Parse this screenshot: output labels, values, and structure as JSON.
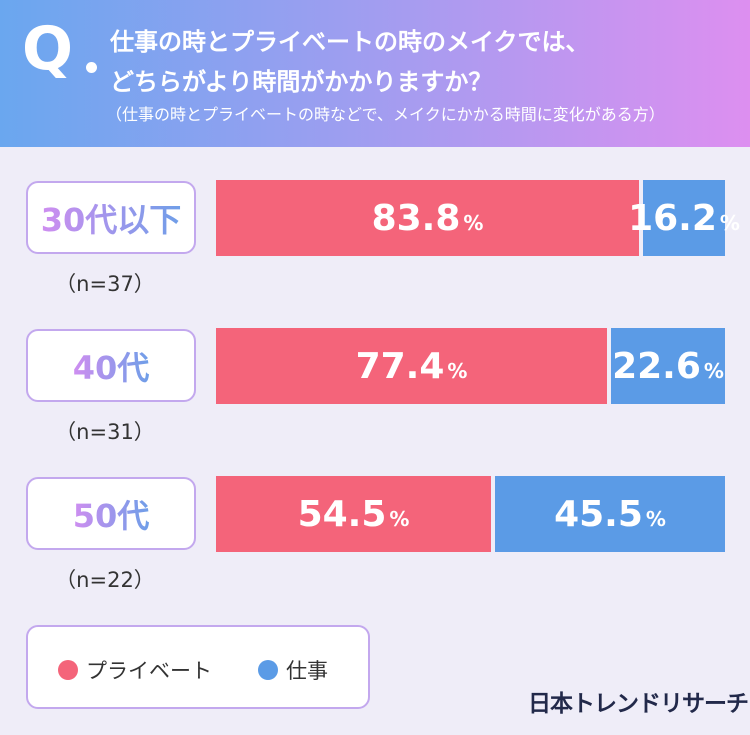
{
  "header": {
    "q_mark": "Q",
    "title_line1": "仕事の時とプライベートの時のメイクでは、",
    "title_line2": "どちらがより時間がかかりますか？",
    "note": "（仕事の時とプライベートの時などで、メイクにかかる時間に変化がある方）"
  },
  "colors": {
    "private": "#f4647a",
    "work": "#5b9be6"
  },
  "chart_data": {
    "type": "bar",
    "stacked": true,
    "orientation": "horizontal",
    "unit": "%",
    "categories": [
      "30代以下",
      "40代",
      "50代"
    ],
    "sample_sizes": [
      "（n=37）",
      "（n=31）",
      "（n=22）"
    ],
    "series": [
      {
        "name": "プライベート",
        "values": [
          83.8,
          77.4,
          54.5
        ],
        "labels": [
          "83.8",
          "77.4",
          "54.5"
        ]
      },
      {
        "name": "仕事",
        "values": [
          16.2,
          22.6,
          45.5
        ],
        "labels": [
          "16.2",
          "22.6",
          "45.5"
        ]
      }
    ],
    "xlim": [
      0,
      100
    ],
    "grid": false,
    "legend": "bottom-left"
  },
  "logo_text": "日本トレンドリサーチ"
}
